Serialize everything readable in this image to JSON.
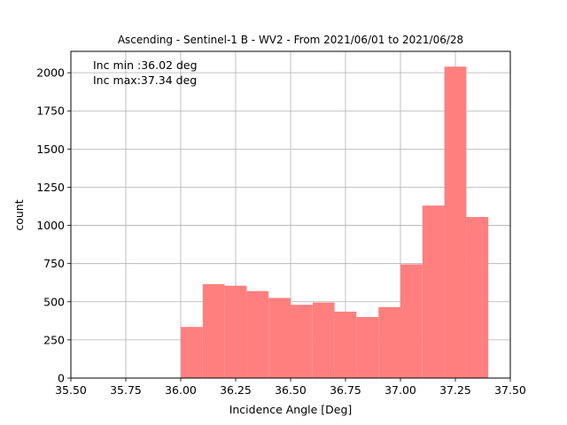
{
  "chart_data": {
    "type": "bar",
    "title": "Ascending - Sentinel-1 B - WV2 - From 2021/06/01 to 2021/06/28",
    "xlabel": "Incidence Angle [Deg]",
    "ylabel": "count",
    "xlim": [
      35.5,
      37.5
    ],
    "ylim": [
      0,
      2140
    ],
    "xticks": [
      "35.50",
      "35.75",
      "36.00",
      "36.25",
      "36.50",
      "36.75",
      "37.00",
      "37.25",
      "37.50"
    ],
    "yticks": [
      "0",
      "250",
      "500",
      "750",
      "1000",
      "1250",
      "1500",
      "1750",
      "2000"
    ],
    "grid": true,
    "bar_color": "#ff7f7f",
    "annotations": [
      "Inc min :36.02 deg",
      "Inc max:37.34 deg"
    ],
    "bins": [
      {
        "x0": 36.0,
        "x1": 36.1,
        "count": 335
      },
      {
        "x0": 36.1,
        "x1": 36.2,
        "count": 615
      },
      {
        "x0": 36.2,
        "x1": 36.3,
        "count": 605
      },
      {
        "x0": 36.3,
        "x1": 36.4,
        "count": 570
      },
      {
        "x0": 36.4,
        "x1": 36.5,
        "count": 525
      },
      {
        "x0": 36.5,
        "x1": 36.6,
        "count": 480
      },
      {
        "x0": 36.6,
        "x1": 36.7,
        "count": 495
      },
      {
        "x0": 36.7,
        "x1": 36.8,
        "count": 435
      },
      {
        "x0": 36.8,
        "x1": 36.9,
        "count": 400
      },
      {
        "x0": 36.9,
        "x1": 37.0,
        "count": 465
      },
      {
        "x0": 37.0,
        "x1": 37.1,
        "count": 745
      },
      {
        "x0": 37.1,
        "x1": 37.2,
        "count": 1130
      },
      {
        "x0": 37.2,
        "x1": 37.3,
        "count": 2040
      },
      {
        "x0": 37.3,
        "x1": 37.4,
        "count": 1055
      }
    ]
  }
}
